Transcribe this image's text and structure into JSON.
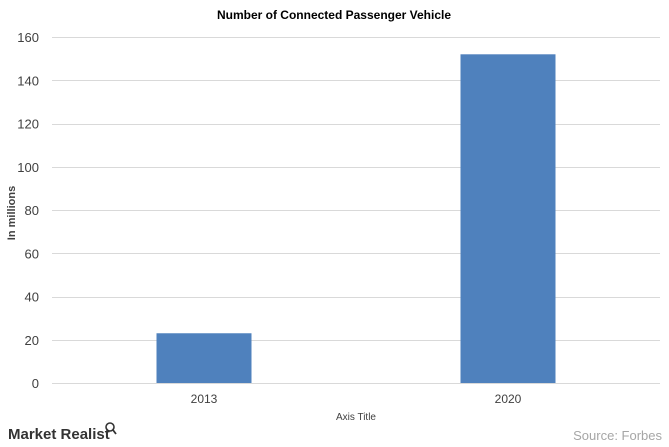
{
  "chart_data": {
    "type": "bar",
    "title": "Number of Connected Passenger Vehicle",
    "categories": [
      "2013",
      "2020"
    ],
    "values": [
      23,
      152
    ],
    "xlabel": "Axis Title",
    "ylabel": "In millions",
    "ylim": [
      0,
      160
    ],
    "yticks": [
      0,
      20,
      40,
      60,
      80,
      100,
      120,
      140,
      160
    ],
    "grid": true,
    "legend": "none",
    "bar_color": "#4f81bd",
    "grid_color": "#d9d9d9"
  },
  "branding": {
    "logo_text": "Market Realist",
    "source": "Source: Forbes"
  }
}
